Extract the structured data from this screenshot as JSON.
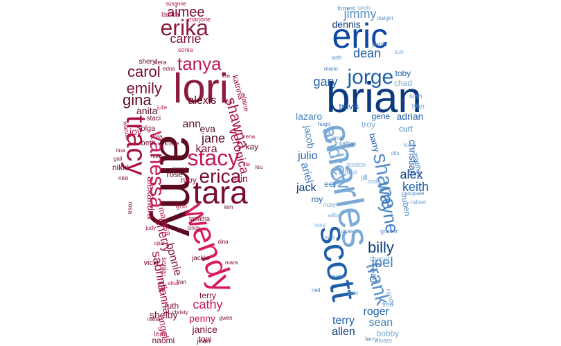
{
  "palette": {
    "female": [
      "#7a0c2e",
      "#a8123f",
      "#c2185b",
      "#8e1a3c",
      "#5b0a1f",
      "#d81b60",
      "#b03060"
    ],
    "male": [
      "#0b3a7e",
      "#1f5fa8",
      "#3f7fbf",
      "#5a8fc8",
      "#7aaad6",
      "#0d47a1",
      "#2e6db4"
    ]
  },
  "female_words": [
    [
      "amy",
      "#5b0a1f"
    ],
    [
      "lori",
      "#8e1a3c"
    ],
    [
      "tara",
      "#7a0c2e"
    ],
    [
      "wendy",
      "#d81b60"
    ],
    [
      "tracy",
      "#a8123f"
    ],
    [
      "stacy",
      "#c2185b"
    ],
    [
      "erika",
      "#8e1a3c"
    ],
    [
      "vanessa",
      "#c2185b"
    ],
    [
      "erica",
      "#7a0c2e"
    ],
    [
      "tanya",
      "#c2185b"
    ],
    [
      "carol",
      "#7a0c2e"
    ],
    [
      "emily",
      "#7a0c2e"
    ],
    [
      "gina",
      "#5b0a1f"
    ],
    [
      "shawna",
      "#a8123f"
    ],
    [
      "aimee",
      "#7a0c2e"
    ],
    [
      "carrie",
      "#7a0c2e"
    ],
    [
      "veronica",
      "#a8123f"
    ],
    [
      "jane",
      "#5b0a1f"
    ],
    [
      "kara",
      "#7a0c2e"
    ],
    [
      "alexis",
      "#5b0a1f"
    ],
    [
      "ann",
      "#5b0a1f"
    ],
    [
      "sherry",
      "#a8123f"
    ],
    [
      "bonnie",
      "#7a0c2e"
    ],
    [
      "sabrina",
      "#a8123f"
    ],
    [
      "cathy",
      "#c2185b"
    ],
    [
      "penny",
      "#c2185b"
    ],
    [
      "janice",
      "#7a0c2e"
    ],
    [
      "toni",
      "#7a0c2e"
    ],
    [
      "dianna",
      "#a8123f"
    ],
    [
      "shelby",
      "#7a0c2e"
    ],
    [
      "angel",
      "#c2185b"
    ],
    [
      "naomi",
      "#7a0c2e"
    ],
    [
      "ruth",
      "#7a0c2e"
    ],
    [
      "anita",
      "#5b0a1f"
    ],
    [
      "joy",
      "#c2185b"
    ],
    [
      "alexandra",
      "#a8123f"
    ],
    [
      "rose",
      "#5b0a1f"
    ],
    [
      "ruby",
      "#a8123f"
    ],
    [
      "eva",
      "#5b0a1f"
    ],
    [
      "erin",
      "#a8123f"
    ],
    [
      "katrina",
      "#a8123f"
    ],
    [
      "nikki",
      "#5b0a1f"
    ],
    [
      "olga",
      "#7a0c2e"
    ],
    [
      "beth",
      "#7a0c2e"
    ],
    [
      "marissa",
      "#c2185b"
    ],
    [
      "kay",
      "#5b0a1f"
    ],
    [
      "terry",
      "#7a0c2e"
    ],
    [
      "jackie",
      "#5b0a1f"
    ],
    [
      "leah",
      "#a8123f"
    ],
    [
      "jean",
      "#7a0c2e"
    ],
    [
      "sonja",
      "#a8123f"
    ],
    [
      "vicki",
      "#7a0c2e"
    ],
    [
      "tamra",
      "#a8123f"
    ],
    [
      "marjorie",
      "#c2185b"
    ],
    [
      "susanne",
      "#a8123f"
    ],
    [
      "sonia",
      "#c2185b"
    ],
    [
      "sheryl",
      "#5b0a1f"
    ],
    [
      "vera",
      "#7a0c2e"
    ],
    [
      "staci",
      "#7a0c2e"
    ],
    [
      "elaine",
      "#a8123f"
    ],
    [
      "jenna",
      "#7a0c2e"
    ],
    [
      "lynn",
      "#a8123f"
    ],
    [
      "tabatha",
      "#7a0c2e"
    ],
    [
      "rosa",
      "#7a0c2e"
    ],
    [
      "rikki",
      "#7a0c2e"
    ],
    [
      "wanda",
      "#a8123f"
    ],
    [
      "kristie",
      "#7a0c2e"
    ],
    [
      "lou",
      "#5b0a1f"
    ],
    [
      "julie",
      "#c2185b"
    ],
    [
      "cindy",
      "#7a0c2e"
    ],
    [
      "fran",
      "#5b0a1f"
    ],
    [
      "gail",
      "#7a0c2e"
    ],
    [
      "jayla",
      "#a8123f"
    ],
    [
      "christy",
      "#7a0c2e"
    ],
    [
      "elisa",
      "#c2185b"
    ],
    [
      "nikita",
      "#7a0c2e"
    ],
    [
      "kim",
      "#5b0a1f"
    ],
    [
      "tina",
      "#7a0c2e"
    ],
    [
      "lisa",
      "#7a0c2e"
    ],
    [
      "rena",
      "#a8123f"
    ],
    [
      "dina",
      "#7a0c2e"
    ],
    [
      "judy",
      "#a8123f"
    ],
    [
      "mara",
      "#7a0c2e"
    ],
    [
      "nora",
      "#5b0a1f"
    ],
    [
      "lila",
      "#a8123f"
    ],
    [
      "edna",
      "#7a0c2e"
    ],
    [
      "iris",
      "#7a0c2e"
    ],
    [
      "opal",
      "#a8123f"
    ],
    [
      "gwen",
      "#7a0c2e"
    ],
    [
      "cora",
      "#5b0a1f"
    ]
  ],
  "male_words": [
    [
      "brian",
      "#0b3a7e"
    ],
    [
      "charles",
      "#7aaad6"
    ],
    [
      "scott",
      "#1f5fa8"
    ],
    [
      "eric",
      "#0d47a1"
    ],
    [
      "shane",
      "#5a8fc8"
    ],
    [
      "jorge",
      "#1f5fa8"
    ],
    [
      "andrew",
      "#7aaad6"
    ],
    [
      "frank",
      "#5a8fc8"
    ],
    [
      "wayne",
      "#3f7fbf"
    ],
    [
      "billy",
      "#0b3a7e"
    ],
    [
      "joel",
      "#3f7fbf"
    ],
    [
      "keith",
      "#1f5fa8"
    ],
    [
      "alex",
      "#0b3a7e"
    ],
    [
      "jimmy",
      "#5a8fc8"
    ],
    [
      "gary",
      "#1f5fa8"
    ],
    [
      "dean",
      "#1f5fa8"
    ],
    [
      "dennis",
      "#0b3a7e"
    ],
    [
      "jacob",
      "#3f7fbf"
    ],
    [
      "julio",
      "#1f5fa8"
    ],
    [
      "jack",
      "#0b3a7e"
    ],
    [
      "ariel",
      "#3f7fbf"
    ],
    [
      "roger",
      "#1f5fa8"
    ],
    [
      "terry",
      "#1f5fa8"
    ],
    [
      "allen",
      "#0b3a7e"
    ],
    [
      "sean",
      "#3f7fbf"
    ],
    [
      "christian",
      "#1f5fa8"
    ],
    [
      "adrian",
      "#1f5fa8"
    ],
    [
      "lazaro",
      "#3f7fbf"
    ],
    [
      "travis",
      "#1f5fa8"
    ],
    [
      "gene",
      "#1f5fa8"
    ],
    [
      "barry",
      "#1f5fa8"
    ],
    [
      "toby",
      "#1f5fa8"
    ],
    [
      "chad",
      "#7aaad6"
    ],
    [
      "ivan",
      "#5a8fc8"
    ],
    [
      "tyler",
      "#7aaad6"
    ],
    [
      "matthew",
      "#3f7fbf"
    ],
    [
      "ruben",
      "#3f7fbf"
    ],
    [
      "curt",
      "#3f7fbf"
    ],
    [
      "troy",
      "#7aaad6"
    ],
    [
      "roy",
      "#1f5fa8"
    ],
    [
      "bobby",
      "#7aaad6"
    ],
    [
      "randy",
      "#7aaad6"
    ],
    [
      "earl",
      "#3f7fbf"
    ],
    [
      "eel",
      "#3f7fbf"
    ],
    [
      "jill",
      "#5a8fc8"
    ],
    [
      "eddie",
      "#7aaad6"
    ],
    [
      "fred",
      "#7aaad6"
    ],
    [
      "cody",
      "#7aaad6"
    ],
    [
      "gordon",
      "#7aaad6"
    ],
    [
      "pablo",
      "#5a8fc8"
    ],
    [
      "rafael",
      "#7aaad6"
    ],
    [
      "ricky",
      "#7aaad6"
    ],
    [
      "lucas",
      "#5a8fc8"
    ],
    [
      "grover",
      "#5a8fc8"
    ],
    [
      "conrad",
      "#7aaad6"
    ],
    [
      "ferry",
      "#5a8fc8"
    ],
    [
      "alvaro",
      "#7aaad6"
    ],
    [
      "dwight",
      "#5a8fc8"
    ],
    [
      "forrest",
      "#5a8fc8"
    ],
    [
      "lando",
      "#7aaad6"
    ],
    [
      "mario",
      "#3f7fbf"
    ],
    [
      "seth",
      "#5a8fc8"
    ],
    [
      "kurt",
      "#7aaad6"
    ],
    [
      "omar",
      "#5a8fc8"
    ],
    [
      "hugo",
      "#3f7fbf"
    ],
    [
      "reed",
      "#7aaad6"
    ],
    [
      "milo",
      "#5a8fc8"
    ],
    [
      "lionel",
      "#7aaad6"
    ],
    [
      "pasquale",
      "#5a8fc8"
    ],
    [
      "wilbur",
      "#7aaad6"
    ],
    [
      "nathan",
      "#3f7fbf"
    ],
    [
      "owen",
      "#5a8fc8"
    ],
    [
      "dale",
      "#7aaad6"
    ],
    [
      "neil",
      "#3f7fbf"
    ],
    [
      "otis",
      "#5a8fc8"
    ]
  ]
}
